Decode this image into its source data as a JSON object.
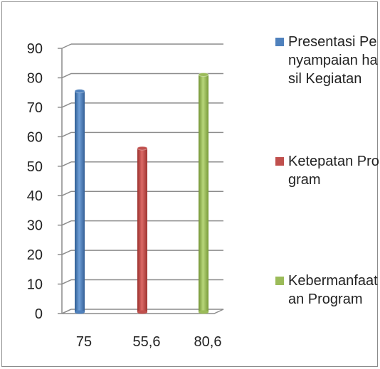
{
  "chart_data": {
    "type": "bar",
    "style": "3d-cylinder",
    "categories": [
      "75",
      "55,6",
      "80,6"
    ],
    "series": [
      {
        "name": "Presentasi Penyampaian hasil Kegiatan",
        "color": "#4f81bd",
        "values": [
          75,
          null,
          null
        ]
      },
      {
        "name": "Ketepatan Program",
        "color": "#c0504d",
        "values": [
          null,
          55.6,
          null
        ]
      },
      {
        "name": "Kebermanfaatan Program",
        "color": "#9bbb59",
        "values": [
          null,
          null,
          80.6
        ]
      }
    ],
    "y_ticks": [
      "0",
      "10",
      "20",
      "30",
      "40",
      "50",
      "60",
      "70",
      "80",
      "90"
    ],
    "ylim": [
      0,
      90
    ],
    "grid": true,
    "legend_position": "right",
    "title": "",
    "xlabel": "",
    "ylabel": ""
  }
}
